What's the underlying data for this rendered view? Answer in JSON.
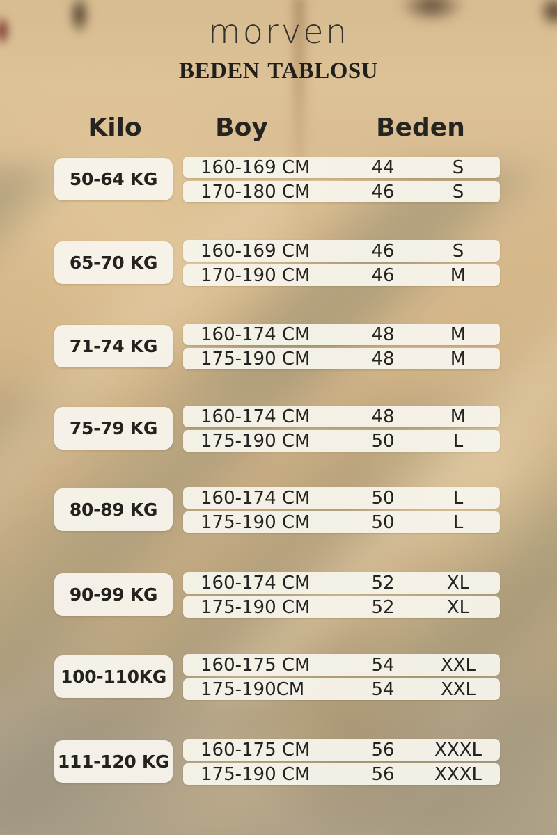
{
  "brand": "morven",
  "title": "BEDEN TABLOSU",
  "colors": {
    "background_tan": "#cfb287",
    "background_olive_stripe": "#968d70",
    "bar_cream": "#f6f3ea",
    "text_dark": "#242220"
  },
  "table": {
    "headers": {
      "weight": "Kilo",
      "height": "Boy",
      "size": "Beden"
    },
    "groups": [
      {
        "weight": "50-64 KG",
        "rows": [
          {
            "height": "160-169 CM",
            "size_number": "44",
            "size_letter": "S"
          },
          {
            "height": "170-180 CM",
            "size_number": "46",
            "size_letter": "S"
          }
        ]
      },
      {
        "weight": "65-70 KG",
        "rows": [
          {
            "height": "160-169 CM",
            "size_number": "46",
            "size_letter": "S"
          },
          {
            "height": "170-190 CM",
            "size_number": "46",
            "size_letter": "M"
          }
        ]
      },
      {
        "weight": "71-74 KG",
        "rows": [
          {
            "height": "160-174 CM",
            "size_number": "48",
            "size_letter": "M"
          },
          {
            "height": "175-190 CM",
            "size_number": "48",
            "size_letter": "M"
          }
        ]
      },
      {
        "weight": "75-79 KG",
        "rows": [
          {
            "height": "160-174 CM",
            "size_number": "48",
            "size_letter": "M"
          },
          {
            "height": "175-190 CM",
            "size_number": "50",
            "size_letter": "L"
          }
        ]
      },
      {
        "weight": "80-89 KG",
        "rows": [
          {
            "height": "160-174 CM",
            "size_number": "50",
            "size_letter": "L"
          },
          {
            "height": "175-190 CM",
            "size_number": "50",
            "size_letter": "L"
          }
        ]
      },
      {
        "weight": "90-99 KG",
        "rows": [
          {
            "height": "160-174 CM",
            "size_number": "52",
            "size_letter": "XL"
          },
          {
            "height": "175-190 CM",
            "size_number": "52",
            "size_letter": "XL"
          }
        ]
      },
      {
        "weight": "100-110KG",
        "rows": [
          {
            "height": "160-175 CM",
            "size_number": "54",
            "size_letter": "XXL"
          },
          {
            "height": "175-190CM",
            "size_number": "54",
            "size_letter": "XXL"
          }
        ]
      },
      {
        "weight": "111-120 KG",
        "rows": [
          {
            "height": "160-175 CM",
            "size_number": "56",
            "size_letter": "XXXL"
          },
          {
            "height": "175-190 CM",
            "size_number": "56",
            "size_letter": "XXXL"
          }
        ]
      }
    ]
  },
  "chart_data": {
    "type": "table",
    "title": "BEDEN TABLOSU",
    "columns": [
      "Kilo",
      "Boy",
      "Beden (number)",
      "Beden (letter)"
    ],
    "rows": [
      [
        "50-64 KG",
        "160-169 CM",
        44,
        "S"
      ],
      [
        "50-64 KG",
        "170-180 CM",
        46,
        "S"
      ],
      [
        "65-70 KG",
        "160-169 CM",
        46,
        "S"
      ],
      [
        "65-70 KG",
        "170-190 CM",
        46,
        "M"
      ],
      [
        "71-74 KG",
        "160-174 CM",
        48,
        "M"
      ],
      [
        "71-74 KG",
        "175-190 CM",
        48,
        "M"
      ],
      [
        "75-79 KG",
        "160-174 CM",
        48,
        "M"
      ],
      [
        "75-79 KG",
        "175-190 CM",
        50,
        "L"
      ],
      [
        "80-89 KG",
        "160-174 CM",
        50,
        "L"
      ],
      [
        "80-89 KG",
        "175-190 CM",
        50,
        "L"
      ],
      [
        "90-99 KG",
        "160-174 CM",
        52,
        "XL"
      ],
      [
        "90-99 KG",
        "175-190 CM",
        52,
        "XL"
      ],
      [
        "100-110KG",
        "160-175 CM",
        54,
        "XXL"
      ],
      [
        "100-110KG",
        "175-190CM",
        54,
        "XXL"
      ],
      [
        "111-120 KG",
        "160-175 CM",
        56,
        "XXXL"
      ],
      [
        "111-120 KG",
        "175-190 CM",
        56,
        "XXXL"
      ]
    ]
  }
}
